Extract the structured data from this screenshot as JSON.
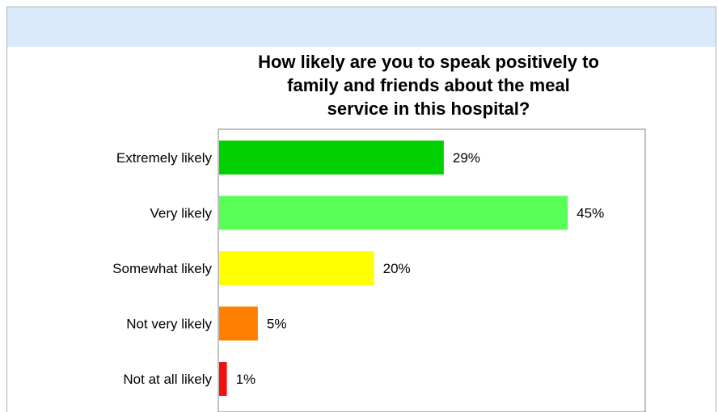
{
  "chart_data": {
    "type": "bar",
    "orientation": "horizontal",
    "title": "How likely are you to speak positively to\nfamily and friends about the meal\nservice in this hospital?",
    "categories": [
      "Extremely likely",
      "Very likely",
      "Somewhat likely",
      "Not very likely",
      "Not at all likely"
    ],
    "values": [
      29,
      45,
      20,
      5,
      1
    ],
    "value_labels": [
      "29%",
      "45%",
      "20%",
      "5%",
      "1%"
    ],
    "colors": [
      "#00d000",
      "#57ff57",
      "#ffff00",
      "#ff8000",
      "#f01010"
    ],
    "xlim": [
      0,
      55
    ],
    "grid": false,
    "legend": "none"
  }
}
